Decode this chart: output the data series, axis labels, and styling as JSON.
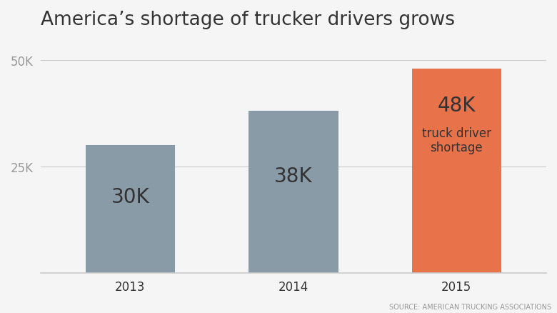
{
  "title": "America’s shortage of trucker drivers grows",
  "categories": [
    "2013",
    "2014",
    "2015"
  ],
  "values": [
    30000,
    38000,
    48000
  ],
  "bar_colors": [
    "#8a9ba8",
    "#8a9ba8",
    "#e8724a"
  ],
  "bar_labels": [
    "30K",
    "38K",
    "48K"
  ],
  "annotation_label": "truck driver\nshortage",
  "source": "SOURCE: AMERICAN TRUCKING ASSOCIATIONS",
  "background_color": "#f5f5f5",
  "yticks": [
    25000,
    50000
  ],
  "ytick_labels": [
    "25K",
    "50K"
  ],
  "ylim": [
    0,
    56000
  ],
  "title_fontsize": 19,
  "bar_label_fontsize": 20,
  "annotation_fontsize": 12,
  "axis_label_fontsize": 12,
  "source_fontsize": 7,
  "text_color": "#333333",
  "ytick_color": "#999999",
  "grid_color": "#cccccc",
  "bar_width": 0.55
}
